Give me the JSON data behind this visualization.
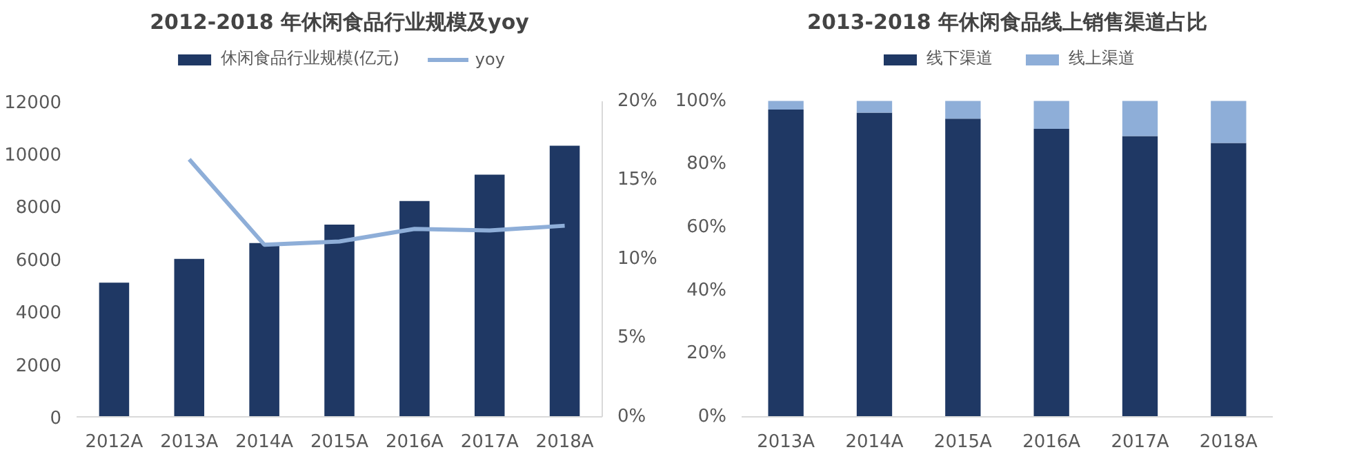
{
  "chart_data": [
    {
      "type": "bar",
      "title": "2012-2018 年休闲食品行业规模及yoy",
      "categories": [
        "2012A",
        "2013A",
        "2014A",
        "2015A",
        "2016A",
        "2017A",
        "2018A"
      ],
      "series": [
        {
          "name": "休闲食品行业规模(亿元)",
          "color": "#1f3864",
          "values": [
            5100,
            6000,
            6600,
            7300,
            8200,
            9200,
            10300
          ]
        },
        {
          "name": "yoy",
          "type": "line",
          "axis": "y2",
          "color": "#8eaed8",
          "values": [
            null,
            16.3,
            10.9,
            11.1,
            11.9,
            11.8,
            12.1
          ]
        }
      ],
      "ylim": [
        0,
        12000
      ],
      "yticks": [
        0,
        2000,
        4000,
        6000,
        8000,
        10000,
        12000
      ],
      "y2lim": [
        0,
        20
      ],
      "y2ticks": [
        {
          "value": 0,
          "label": "0%"
        },
        {
          "value": 5,
          "label": "5%"
        },
        {
          "value": 10,
          "label": "10%"
        },
        {
          "value": 15,
          "label": "15%"
        },
        {
          "value": 20,
          "label": "20%"
        }
      ],
      "grid": false,
      "legend": "top",
      "marker": "none"
    },
    {
      "type": "bar",
      "title": "2013-2018 年休闲食品线上销售渠道占比",
      "categories": [
        "2013A",
        "2014A",
        "2015A",
        "2016A",
        "2017A",
        "2018A"
      ],
      "stacked": true,
      "series": [
        {
          "name": "线下渠道",
          "color": "#1f3864",
          "values": [
            97.3,
            96.3,
            94.4,
            91.2,
            88.9,
            86.7
          ]
        },
        {
          "name": "线上渠道",
          "color": "#8eaed8",
          "values": [
            2.7,
            3.7,
            5.6,
            8.8,
            11.1,
            13.3
          ]
        }
      ],
      "ylim": [
        0,
        100
      ],
      "yticks": [
        {
          "value": 0,
          "label": "0%"
        },
        {
          "value": 20,
          "label": "20%"
        },
        {
          "value": 40,
          "label": "40%"
        },
        {
          "value": 60,
          "label": "60%"
        },
        {
          "value": 80,
          "label": "80%"
        },
        {
          "value": 100,
          "label": "100%"
        }
      ],
      "grid": false,
      "legend": "top"
    }
  ]
}
